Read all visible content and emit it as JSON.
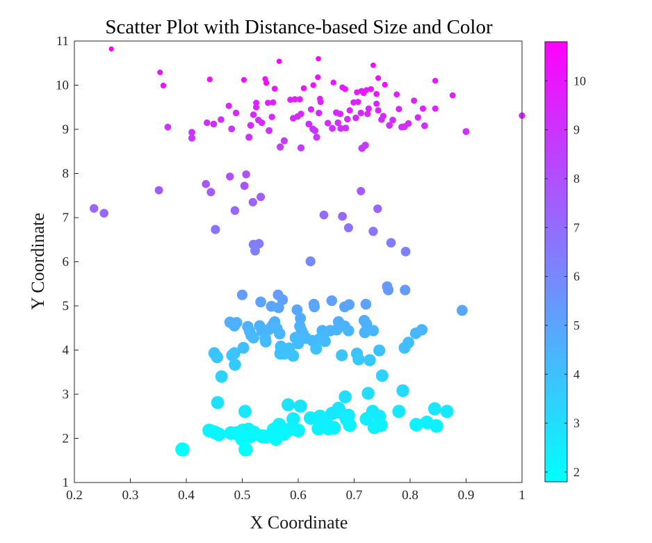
{
  "chart_data": {
    "type": "scatter",
    "title": "Scatter Plot with Distance-based Size and Color",
    "xlabel": "X Coordinate",
    "ylabel": "Y Coordinate",
    "xlim": [
      0.2,
      1.0
    ],
    "ylim": [
      1,
      11
    ],
    "x_ticks": [
      "0.2",
      "0.3",
      "0.4",
      "0.5",
      "0.6",
      "0.7",
      "0.8",
      "0.9",
      "1"
    ],
    "y_ticks": [
      "1",
      "2",
      "3",
      "4",
      "5",
      "6",
      "7",
      "8",
      "9",
      "10",
      "11"
    ],
    "grid": false,
    "colormap": "cool",
    "color_min": "#00ffff",
    "color_max": "#ff00ff",
    "colorbar": {
      "range": [
        1.8,
        10.8
      ],
      "ticks": [
        "2",
        "3",
        "4",
        "5",
        "6",
        "7",
        "8",
        "9",
        "10"
      ]
    },
    "points": [
      [
        0.266,
        10.82
      ],
      [
        0.353,
        10.29
      ],
      [
        0.359,
        9.99
      ],
      [
        0.367,
        9.05
      ],
      [
        0.41,
        8.93
      ],
      [
        0.41,
        8.8
      ],
      [
        0.437,
        9.15
      ],
      [
        0.442,
        10.13
      ],
      [
        0.449,
        9.12
      ],
      [
        0.462,
        9.22
      ],
      [
        0.476,
        9.53
      ],
      [
        0.481,
        9.01
      ],
      [
        0.489,
        9.37
      ],
      [
        0.503,
        10.12
      ],
      [
        0.512,
        8.82
      ],
      [
        0.515,
        9.09
      ],
      [
        0.52,
        9.33
      ],
      [
        0.525,
        9.6
      ],
      [
        0.525,
        9.5
      ],
      [
        0.529,
        9.21
      ],
      [
        0.535,
        9.15
      ],
      [
        0.541,
        10.14
      ],
      [
        0.543,
        10.05
      ],
      [
        0.546,
        9.6
      ],
      [
        0.548,
        8.97
      ],
      [
        0.553,
        9.28
      ],
      [
        0.555,
        9.61
      ],
      [
        0.558,
        9.92
      ],
      [
        0.566,
        10.54
      ],
      [
        0.568,
        8.6
      ],
      [
        0.575,
        8.74
      ],
      [
        0.586,
        9.67
      ],
      [
        0.591,
        9.25
      ],
      [
        0.594,
        9.68
      ],
      [
        0.599,
        9.29
      ],
      [
        0.603,
        9.68
      ],
      [
        0.605,
        8.58
      ],
      [
        0.605,
        9.35
      ],
      [
        0.61,
        9.93
      ],
      [
        0.619,
        9.12
      ],
      [
        0.623,
        9.45
      ],
      [
        0.626,
        9.01
      ],
      [
        0.627,
        10.0
      ],
      [
        0.63,
        8.97
      ],
      [
        0.633,
        8.82
      ],
      [
        0.635,
        10.18
      ],
      [
        0.636,
        10.6
      ],
      [
        0.637,
        9.37
      ],
      [
        0.639,
        9.69
      ],
      [
        0.64,
        9.62
      ],
      [
        0.653,
        9.14
      ],
      [
        0.661,
        9.02
      ],
      [
        0.663,
        10.06
      ],
      [
        0.668,
        9.38
      ],
      [
        0.671,
        9.15
      ],
      [
        0.675,
        9.35
      ],
      [
        0.676,
        9.02
      ],
      [
        0.679,
        9.95
      ],
      [
        0.684,
        9.91
      ],
      [
        0.685,
        9.03
      ],
      [
        0.688,
        9.23
      ],
      [
        0.692,
        9.43
      ],
      [
        0.699,
        9.61
      ],
      [
        0.703,
        9.26
      ],
      [
        0.705,
        9.84
      ],
      [
        0.707,
        9.62
      ],
      [
        0.712,
        9.37
      ],
      [
        0.713,
        9.87
      ],
      [
        0.714,
        8.57
      ],
      [
        0.717,
        9.82
      ],
      [
        0.72,
        8.64
      ],
      [
        0.722,
        9.89
      ],
      [
        0.724,
        9.35
      ],
      [
        0.726,
        9.47
      ],
      [
        0.73,
        9.91
      ],
      [
        0.734,
        10.45
      ],
      [
        0.74,
        9.58
      ],
      [
        0.74,
        9.8
      ],
      [
        0.743,
        10.16
      ],
      [
        0.743,
        9.43
      ],
      [
        0.749,
        9.22
      ],
      [
        0.752,
        9.3
      ],
      [
        0.755,
        10.01
      ],
      [
        0.763,
        9.09
      ],
      [
        0.769,
        9.21
      ],
      [
        0.776,
        9.79
      ],
      [
        0.78,
        9.46
      ],
      [
        0.785,
        9.05
      ],
      [
        0.79,
        9.06
      ],
      [
        0.797,
        9.13
      ],
      [
        0.807,
        9.65
      ],
      [
        0.814,
        9.27
      ],
      [
        0.823,
        9.47
      ],
      [
        0.826,
        9.08
      ],
      [
        0.845,
        10.1
      ],
      [
        0.845,
        9.47
      ],
      [
        0.876,
        9.77
      ],
      [
        0.9,
        8.95
      ],
      [
        1.0,
        9.31
      ],
      [
        0.235,
        7.21
      ],
      [
        0.253,
        7.1
      ],
      [
        0.351,
        7.62
      ],
      [
        0.435,
        7.76
      ],
      [
        0.444,
        7.58
      ],
      [
        0.452,
        6.73
      ],
      [
        0.478,
        7.93
      ],
      [
        0.487,
        7.16
      ],
      [
        0.504,
        7.72
      ],
      [
        0.507,
        7.98
      ],
      [
        0.519,
        7.35
      ],
      [
        0.52,
        6.39
      ],
      [
        0.523,
        6.25
      ],
      [
        0.53,
        6.41
      ],
      [
        0.533,
        7.47
      ],
      [
        0.622,
        6.01
      ],
      [
        0.646,
        7.06
      ],
      [
        0.679,
        7.03
      ],
      [
        0.69,
        6.77
      ],
      [
        0.712,
        7.6
      ],
      [
        0.734,
        6.69
      ],
      [
        0.742,
        7.2
      ],
      [
        0.766,
        6.43
      ],
      [
        0.792,
        6.23
      ],
      [
        0.5,
        5.25
      ],
      [
        0.533,
        5.09
      ],
      [
        0.552,
        4.99
      ],
      [
        0.564,
        5.25
      ],
      [
        0.565,
        4.96
      ],
      [
        0.572,
        5.14
      ],
      [
        0.598,
        4.91
      ],
      [
        0.628,
        5.04
      ],
      [
        0.629,
        4.98
      ],
      [
        0.66,
        5.12
      ],
      [
        0.683,
        4.98
      ],
      [
        0.691,
        5.03
      ],
      [
        0.721,
        5.04
      ],
      [
        0.759,
        5.44
      ],
      [
        0.761,
        5.36
      ],
      [
        0.791,
        5.36
      ],
      [
        0.893,
        4.9
      ],
      [
        0.478,
        4.63
      ],
      [
        0.486,
        4.55
      ],
      [
        0.49,
        4.62
      ],
      [
        0.51,
        4.53
      ],
      [
        0.513,
        4.43
      ],
      [
        0.516,
        4.33
      ],
      [
        0.52,
        4.28
      ],
      [
        0.531,
        4.55
      ],
      [
        0.535,
        4.44
      ],
      [
        0.541,
        4.27
      ],
      [
        0.542,
        4.19
      ],
      [
        0.548,
        4.47
      ],
      [
        0.554,
        4.56
      ],
      [
        0.558,
        4.64
      ],
      [
        0.562,
        4.49
      ],
      [
        0.567,
        4.37
      ],
      [
        0.57,
        4.01
      ],
      [
        0.575,
        3.92
      ],
      [
        0.584,
        4.04
      ],
      [
        0.595,
        4.28
      ],
      [
        0.6,
        4.15
      ],
      [
        0.603,
        4.54
      ],
      [
        0.604,
        4.72
      ],
      [
        0.606,
        4.44
      ],
      [
        0.609,
        4.36
      ],
      [
        0.614,
        4.27
      ],
      [
        0.626,
        4.21
      ],
      [
        0.632,
        4.03
      ],
      [
        0.638,
        4.25
      ],
      [
        0.643,
        4.44
      ],
      [
        0.645,
        4.33
      ],
      [
        0.648,
        4.2
      ],
      [
        0.657,
        4.44
      ],
      [
        0.669,
        4.46
      ],
      [
        0.672,
        4.64
      ],
      [
        0.678,
        3.88
      ],
      [
        0.683,
        4.54
      ],
      [
        0.69,
        4.44
      ],
      [
        0.705,
        3.92
      ],
      [
        0.708,
        3.79
      ],
      [
        0.718,
        4.67
      ],
      [
        0.719,
        4.4
      ],
      [
        0.722,
        4.59
      ],
      [
        0.728,
        3.77
      ],
      [
        0.734,
        4.44
      ],
      [
        0.745,
        3.99
      ],
      [
        0.79,
        4.05
      ],
      [
        0.797,
        4.17
      ],
      [
        0.81,
        4.38
      ],
      [
        0.821,
        4.46
      ],
      [
        0.502,
        4.05
      ],
      [
        0.45,
        3.93
      ],
      [
        0.455,
        3.84
      ],
      [
        0.463,
        3.4
      ],
      [
        0.482,
        3.88
      ],
      [
        0.486,
        3.93
      ],
      [
        0.487,
        3.67
      ],
      [
        0.568,
        3.92
      ],
      [
        0.569,
        4.08
      ],
      [
        0.591,
        3.87
      ],
      [
        0.725,
        3.02
      ],
      [
        0.75,
        3.42
      ],
      [
        0.787,
        3.08
      ],
      [
        0.393,
        1.75
      ],
      [
        0.441,
        2.18
      ],
      [
        0.45,
        2.14
      ],
      [
        0.456,
        2.81
      ],
      [
        0.458,
        2.09
      ],
      [
        0.48,
        2.12
      ],
      [
        0.49,
        2.12
      ],
      [
        0.496,
        2.06
      ],
      [
        0.5,
        1.98
      ],
      [
        0.501,
        2.18
      ],
      [
        0.505,
        2.61
      ],
      [
        0.506,
        1.75
      ],
      [
        0.511,
        2.2
      ],
      [
        0.515,
        2.05
      ],
      [
        0.521,
        2.13
      ],
      [
        0.535,
        2.05
      ],
      [
        0.541,
        2.04
      ],
      [
        0.556,
        2.2
      ],
      [
        0.56,
        1.99
      ],
      [
        0.563,
        2.08
      ],
      [
        0.566,
        2.31
      ],
      [
        0.574,
        2.1
      ],
      [
        0.582,
        2.76
      ],
      [
        0.586,
        2.21
      ],
      [
        0.591,
        2.44
      ],
      [
        0.6,
        2.18
      ],
      [
        0.604,
        2.73
      ],
      [
        0.622,
        2.46
      ],
      [
        0.636,
        2.22
      ],
      [
        0.639,
        2.5
      ],
      [
        0.643,
        2.43
      ],
      [
        0.65,
        2.35
      ],
      [
        0.654,
        2.22
      ],
      [
        0.66,
        2.56
      ],
      [
        0.664,
        2.24
      ],
      [
        0.672,
        2.68
      ],
      [
        0.675,
        2.59
      ],
      [
        0.684,
        2.94
      ],
      [
        0.686,
        2.44
      ],
      [
        0.69,
        2.52
      ],
      [
        0.692,
        2.3
      ],
      [
        0.722,
        2.44
      ],
      [
        0.733,
        2.61
      ],
      [
        0.736,
        2.25
      ],
      [
        0.745,
        2.5
      ],
      [
        0.748,
        2.3
      ],
      [
        0.78,
        2.61
      ],
      [
        0.811,
        2.31
      ],
      [
        0.83,
        2.36
      ],
      [
        0.844,
        2.67
      ],
      [
        0.847,
        2.28
      ],
      [
        0.866,
        2.61
      ]
    ]
  }
}
